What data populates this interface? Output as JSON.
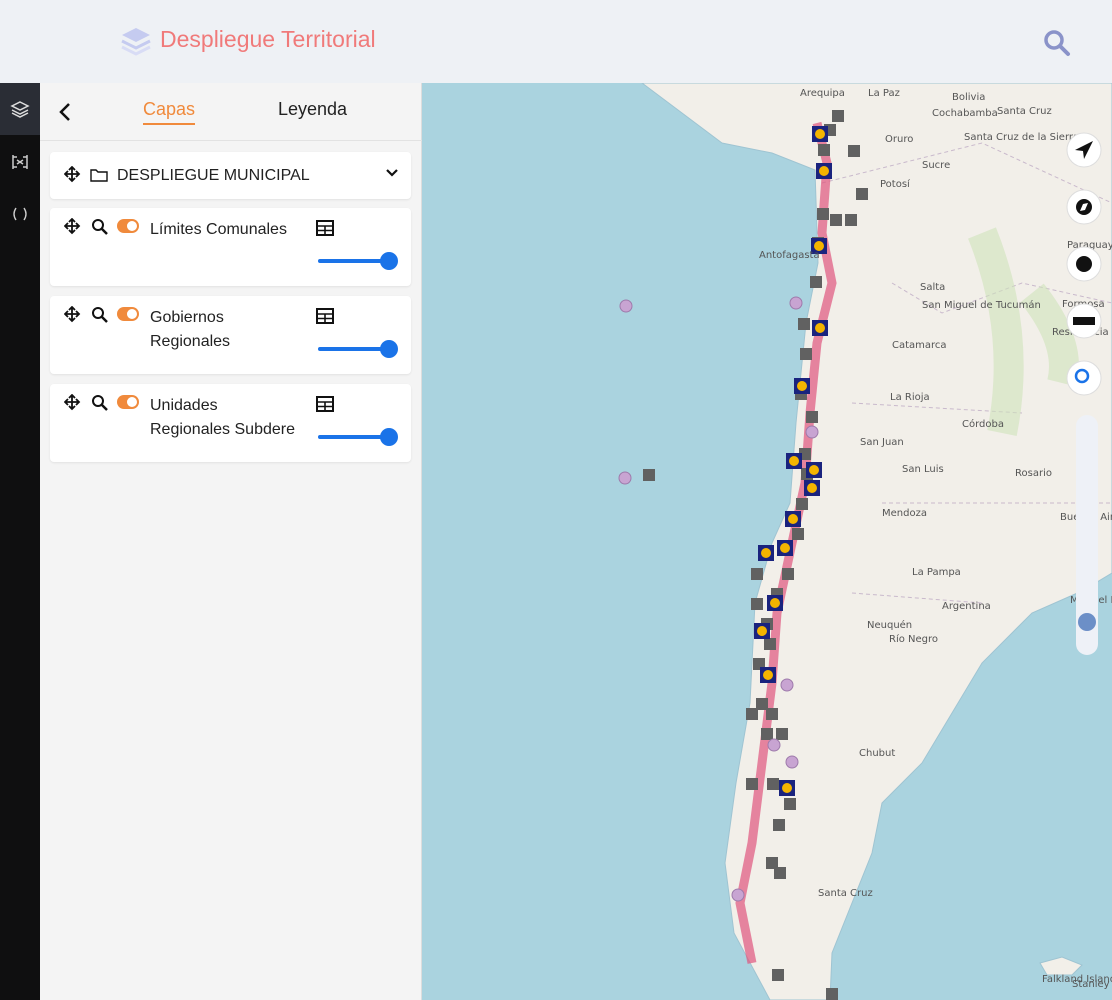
{
  "header": {
    "title": "Despliegue Territorial"
  },
  "tabs": [
    "Capas",
    "Leyenda"
  ],
  "group": {
    "title": "DESPLIEGUE MUNICIPAL"
  },
  "layers": [
    {
      "name": "Límites Comunales"
    },
    {
      "name": "Gobiernos Regionales"
    },
    {
      "name": "Unidades Regionales Subdere"
    }
  ],
  "map": {
    "labels": [
      "Arequipa",
      "La Paz",
      "Bolivia",
      "Cochabamba",
      "Santa Cruz",
      "Oruro",
      "Santa Cruz de la Sierra",
      "Sucre",
      "Potosí",
      "Antofagasta",
      "Paraguay",
      "Salta",
      "San Miguel de Tucumán",
      "Formosa",
      "Resistencia",
      "Córdoba",
      "San Juan",
      "San Luis",
      "Rosario",
      "Buenos Aires",
      "Mendoza",
      "La Pampa",
      "Argentina",
      "Neuquén",
      "Río Negro",
      "Chubut",
      "Santa Cruz",
      "Mar del Plata",
      "Falkland Islands",
      "Stanley",
      "La Rioja",
      "Catamarca"
    ]
  }
}
